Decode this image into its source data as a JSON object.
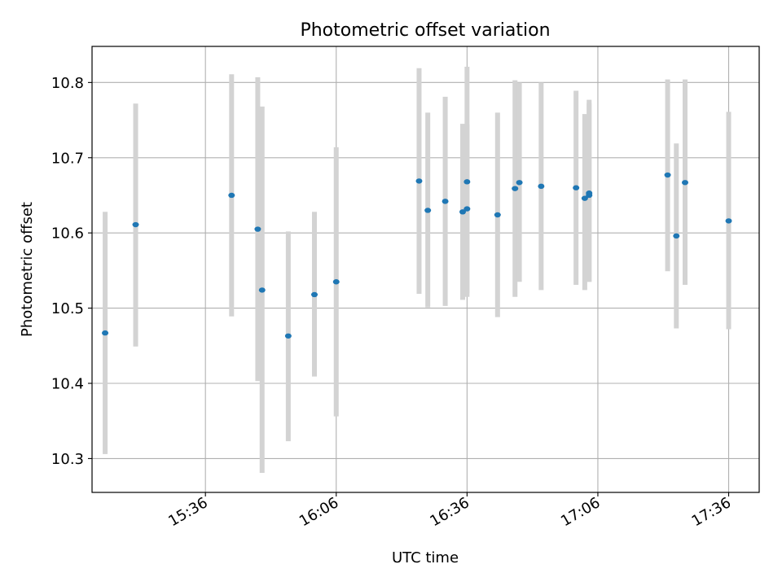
{
  "chart_data": {
    "type": "scatter",
    "title": "Photometric offset variation",
    "xlabel": "UTC time",
    "ylabel": "Photometric offset",
    "x_ticks": [
      "15:36",
      "16:06",
      "16:36",
      "17:06",
      "17:36"
    ],
    "y_ticks": [
      10.3,
      10.4,
      10.5,
      10.6,
      10.7,
      10.8
    ],
    "xlim": [
      "15:10",
      "17:43"
    ],
    "ylim": [
      10.255,
      10.848
    ],
    "grid": true,
    "colors": {
      "points": "#1f77b4",
      "error_bars": "#d3d3d3",
      "grid": "#b0b0b0"
    },
    "points": [
      {
        "time": "15:13",
        "y": 10.467,
        "low": 10.306,
        "high": 10.628
      },
      {
        "time": "15:20",
        "y": 10.611,
        "low": 10.449,
        "high": 10.772
      },
      {
        "time": "15:42",
        "y": 10.65,
        "low": 10.489,
        "high": 10.811
      },
      {
        "time": "15:48",
        "y": 10.605,
        "low": 10.403,
        "high": 10.807
      },
      {
        "time": "15:49",
        "y": 10.524,
        "low": 10.281,
        "high": 10.768
      },
      {
        "time": "15:55",
        "y": 10.463,
        "low": 10.323,
        "high": 10.602
      },
      {
        "time": "16:01",
        "y": 10.518,
        "low": 10.409,
        "high": 10.628
      },
      {
        "time": "16:06",
        "y": 10.535,
        "low": 10.356,
        "high": 10.714
      },
      {
        "time": "16:25",
        "y": 10.669,
        "low": 10.519,
        "high": 10.819
      },
      {
        "time": "16:27",
        "y": 10.63,
        "low": 10.501,
        "high": 10.76
      },
      {
        "time": "16:31",
        "y": 10.642,
        "low": 10.503,
        "high": 10.781
      },
      {
        "time": "16:35",
        "y": 10.628,
        "low": 10.511,
        "high": 10.745
      },
      {
        "time": "16:36",
        "y": 10.632,
        "low": 10.52,
        "high": 10.744
      },
      {
        "time": "16:36",
        "y": 10.668,
        "low": 10.515,
        "high": 10.821
      },
      {
        "time": "16:43",
        "y": 10.624,
        "low": 10.488,
        "high": 10.76
      },
      {
        "time": "16:47",
        "y": 10.659,
        "low": 10.515,
        "high": 10.803
      },
      {
        "time": "16:48",
        "y": 10.667,
        "low": 10.535,
        "high": 10.8
      },
      {
        "time": "16:53",
        "y": 10.662,
        "low": 10.524,
        "high": 10.8
      },
      {
        "time": "17:01",
        "y": 10.66,
        "low": 10.531,
        "high": 10.789
      },
      {
        "time": "17:03",
        "y": 10.646,
        "low": 10.524,
        "high": 10.758
      },
      {
        "time": "17:04",
        "y": 10.65,
        "low": 10.535,
        "high": 10.777
      },
      {
        "time": "17:04",
        "y": 10.653,
        "low": 10.535,
        "high": 10.772
      },
      {
        "time": "17:22",
        "y": 10.677,
        "low": 10.549,
        "high": 10.804
      },
      {
        "time": "17:24",
        "y": 10.596,
        "low": 10.473,
        "high": 10.719
      },
      {
        "time": "17:26",
        "y": 10.667,
        "low": 10.531,
        "high": 10.804
      },
      {
        "time": "17:36",
        "y": 10.616,
        "low": 10.472,
        "high": 10.761
      }
    ]
  }
}
